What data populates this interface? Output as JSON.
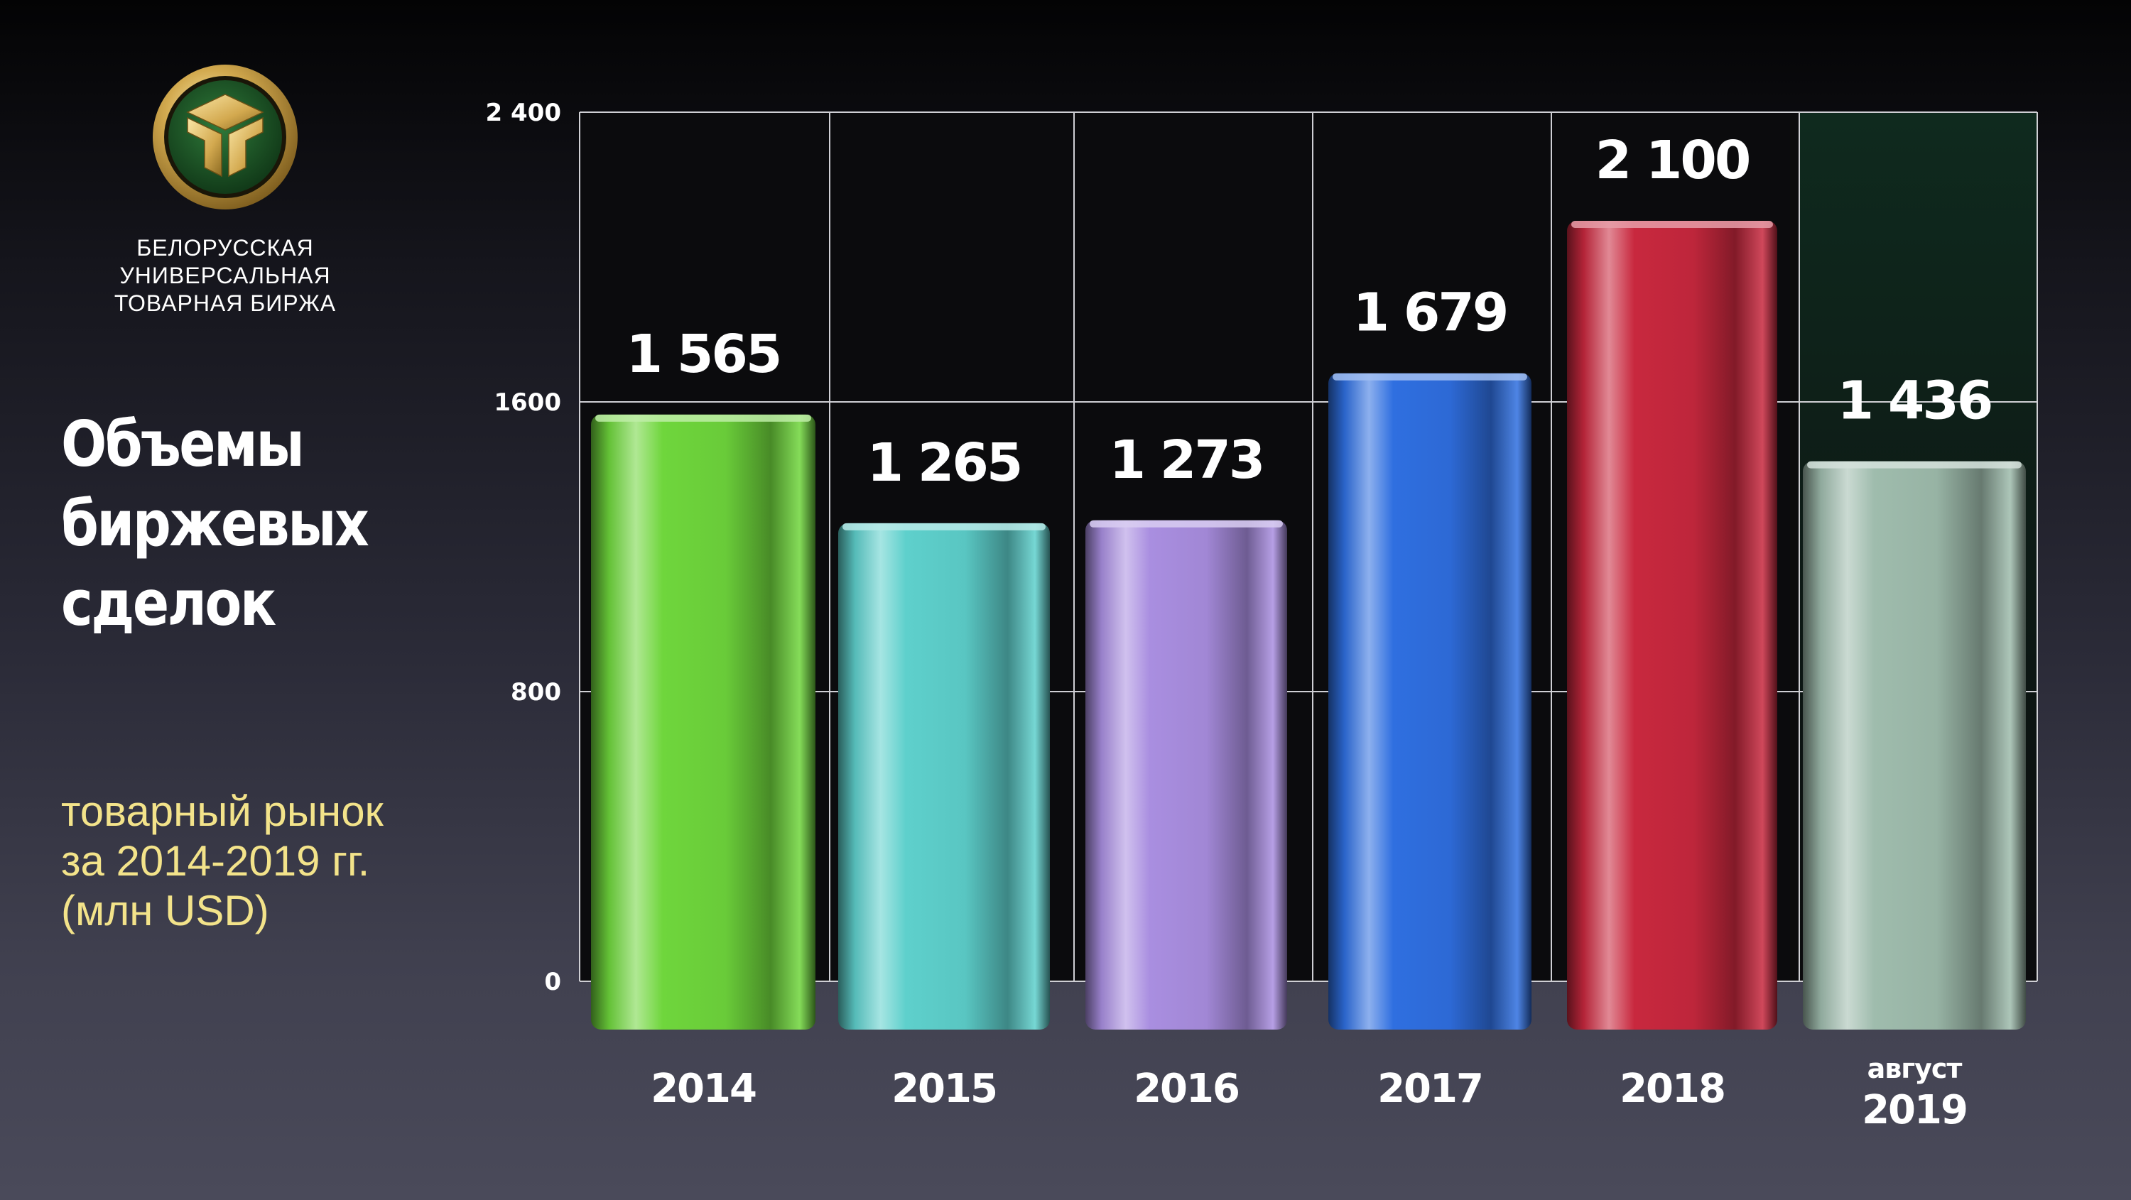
{
  "org": {
    "name_lines": [
      "БЕЛОРУССКАЯ",
      "УНИВЕРСАЛЬНАЯ",
      "ТОВАРНАЯ БИРЖА"
    ],
    "logo_icon": "buce-emblem-icon",
    "logo_colors": {
      "ring": "#c9a24a",
      "inner": "#1f5a2a",
      "emblem": "#d9b35a"
    }
  },
  "title_lines": [
    "Объемы",
    "биржевых",
    "сделок"
  ],
  "subtitle_lines": [
    "товарный рынок",
    "за 2014-2019 гг.",
    "(млн USD)"
  ],
  "chart_data": {
    "type": "bar",
    "categories": [
      "2014",
      "2015",
      "2016",
      "2017",
      "2018",
      "август 2019"
    ],
    "category_labels": [
      {
        "top": "",
        "main": "2014"
      },
      {
        "top": "",
        "main": "2015"
      },
      {
        "top": "",
        "main": "2016"
      },
      {
        "top": "",
        "main": "2017"
      },
      {
        "top": "",
        "main": "2018"
      },
      {
        "top": "август",
        "main": "2019"
      }
    ],
    "values": [
      1565,
      1265,
      1273,
      1679,
      2100,
      1436
    ],
    "value_labels": [
      "1 565",
      "1 265",
      "1 273",
      "1 679",
      "2 100",
      "1 436"
    ],
    "bar_colors": [
      "#6fd63c",
      "#5ed0cc",
      "#a98ee0",
      "#2f6fe0",
      "#c8283e",
      "#9fbcad"
    ],
    "ylim": [
      0,
      2400
    ],
    "yticks": [
      0,
      800,
      1600,
      2400
    ],
    "ytick_labels": [
      "0",
      "800",
      "1600",
      "2 400"
    ],
    "grid": true,
    "highlight_last_column": true,
    "highlight_color": "#0f2a1e"
  }
}
